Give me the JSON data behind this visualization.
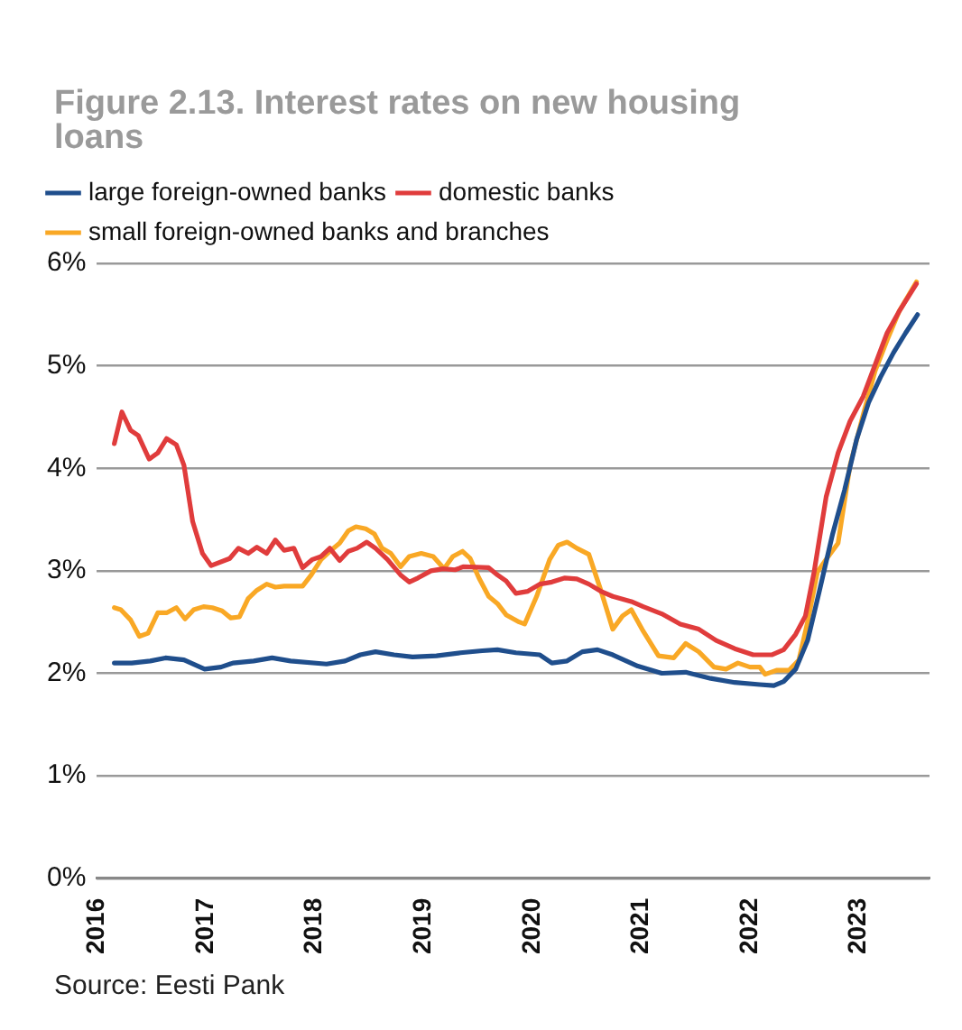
{
  "chart_data": {
    "type": "line",
    "title": "Figure 2.13. Interest rates on new housing loans",
    "xlim": [
      2016,
      2023.65
    ],
    "xticks": [
      2016,
      2017,
      2018,
      2019,
      2020,
      2021,
      2022,
      2023
    ],
    "ylim": [
      0,
      6
    ],
    "yticks": [
      {
        "value": 0,
        "label": "0%"
      },
      {
        "value": 1,
        "label": "1%"
      },
      {
        "value": 2,
        "label": "2%"
      },
      {
        "value": 3,
        "label": "3%"
      },
      {
        "value": 4,
        "label": "4%"
      },
      {
        "value": 5,
        "label": "5%"
      },
      {
        "value": 6,
        "label": "6%"
      }
    ],
    "grid": "y",
    "legend": "top left",
    "marker": "none",
    "line_style": "solid",
    "annotations": [
      "Source: Eesti Pank"
    ],
    "series": [
      {
        "name": "large foreign-owned banks",
        "color": "#1f4e8c",
        "x": [
          2016.16,
          2016.32,
          2016.49,
          2016.63,
          2016.8,
          2016.99,
          2017.14,
          2017.25,
          2017.44,
          2017.61,
          2017.78,
          2018.11,
          2018.28,
          2018.42,
          2018.56,
          2018.73,
          2018.9,
          2019.12,
          2019.34,
          2019.54,
          2019.68,
          2019.85,
          2020.07,
          2020.18,
          2020.32,
          2020.46,
          2020.6,
          2020.74,
          2020.97,
          2021.19,
          2021.41,
          2021.64,
          2021.86,
          2022.09,
          2022.22,
          2022.31,
          2022.42,
          2022.53,
          2022.64,
          2022.76,
          2022.87,
          2022.98,
          2023.09,
          2023.2,
          2023.32,
          2023.43,
          2023.54
        ],
        "values": [
          2.1,
          2.1,
          2.12,
          2.15,
          2.13,
          2.04,
          2.06,
          2.1,
          2.12,
          2.15,
          2.12,
          2.09,
          2.12,
          2.18,
          2.21,
          2.18,
          2.16,
          2.17,
          2.2,
          2.22,
          2.23,
          2.2,
          2.18,
          2.1,
          2.12,
          2.21,
          2.23,
          2.18,
          2.07,
          2.0,
          2.01,
          1.95,
          1.91,
          1.89,
          1.88,
          1.92,
          2.04,
          2.32,
          2.81,
          3.36,
          3.79,
          4.28,
          4.64,
          4.89,
          5.13,
          5.32,
          5.5
        ]
      },
      {
        "name": "domestic banks",
        "color": "#e03c3c",
        "x": [
          2016.16,
          2016.23,
          2016.31,
          2016.38,
          2016.48,
          2016.56,
          2016.64,
          2016.73,
          2016.8,
          2016.88,
          2016.97,
          2017.05,
          2017.22,
          2017.3,
          2017.39,
          2017.47,
          2017.56,
          2017.64,
          2017.72,
          2017.81,
          2017.89,
          2017.98,
          2018.06,
          2018.14,
          2018.23,
          2018.31,
          2018.39,
          2018.48,
          2018.56,
          2018.67,
          2018.79,
          2018.87,
          2018.95,
          2019.07,
          2019.18,
          2019.29,
          2019.37,
          2019.6,
          2019.68,
          2019.76,
          2019.85,
          2019.96,
          2020.07,
          2020.18,
          2020.3,
          2020.41,
          2020.52,
          2020.63,
          2020.74,
          2020.91,
          2021.02,
          2021.19,
          2021.36,
          2021.53,
          2021.69,
          2021.86,
          2022.03,
          2022.2,
          2022.31,
          2022.42,
          2022.51,
          2022.59,
          2022.7,
          2022.81,
          2022.92,
          2023.04,
          2023.15,
          2023.26,
          2023.37,
          2023.53
        ],
        "values": [
          4.24,
          4.55,
          4.37,
          4.32,
          4.09,
          4.15,
          4.29,
          4.23,
          4.03,
          3.48,
          3.17,
          3.05,
          3.12,
          3.22,
          3.17,
          3.23,
          3.17,
          3.3,
          3.2,
          3.22,
          3.03,
          3.11,
          3.14,
          3.22,
          3.1,
          3.19,
          3.22,
          3.28,
          3.22,
          3.11,
          2.96,
          2.89,
          2.93,
          3.0,
          3.02,
          3.01,
          3.04,
          3.03,
          2.96,
          2.9,
          2.78,
          2.8,
          2.87,
          2.89,
          2.93,
          2.92,
          2.87,
          2.8,
          2.75,
          2.7,
          2.65,
          2.58,
          2.48,
          2.43,
          2.32,
          2.24,
          2.18,
          2.18,
          2.23,
          2.38,
          2.56,
          2.99,
          3.72,
          4.15,
          4.46,
          4.7,
          5.01,
          5.32,
          5.53,
          5.8
        ]
      },
      {
        "name": "small foreign-owned banks and branches",
        "color": "#f9a825",
        "x": [
          2016.16,
          2016.22,
          2016.31,
          2016.39,
          2016.47,
          2016.56,
          2016.64,
          2016.73,
          2016.81,
          2016.89,
          2016.98,
          2017.06,
          2017.15,
          2017.23,
          2017.31,
          2017.39,
          2017.47,
          2017.56,
          2017.64,
          2017.72,
          2017.89,
          2017.97,
          2018.06,
          2018.14,
          2018.23,
          2018.31,
          2018.38,
          2018.47,
          2018.55,
          2018.62,
          2018.7,
          2018.79,
          2018.87,
          2018.98,
          2019.09,
          2019.19,
          2019.27,
          2019.36,
          2019.43,
          2019.51,
          2019.6,
          2019.68,
          2019.76,
          2019.88,
          2019.93,
          2020.04,
          2020.16,
          2020.24,
          2020.32,
          2020.41,
          2020.52,
          2020.63,
          2020.74,
          2020.83,
          2020.91,
          2021.02,
          2021.16,
          2021.3,
          2021.41,
          2021.53,
          2021.67,
          2021.78,
          2021.89,
          2022.0,
          2022.09,
          2022.14,
          2022.25,
          2022.36,
          2022.45,
          2022.53,
          2022.62,
          2022.7,
          2022.81,
          2022.92,
          2023.04,
          2023.15,
          2023.26,
          2023.37,
          2023.53
        ],
        "values": [
          2.64,
          2.62,
          2.52,
          2.36,
          2.39,
          2.59,
          2.59,
          2.64,
          2.53,
          2.62,
          2.65,
          2.64,
          2.61,
          2.54,
          2.55,
          2.73,
          2.81,
          2.87,
          2.84,
          2.85,
          2.85,
          2.96,
          3.11,
          3.19,
          3.27,
          3.39,
          3.43,
          3.41,
          3.36,
          3.22,
          3.17,
          3.04,
          3.14,
          3.17,
          3.14,
          3.02,
          3.14,
          3.19,
          3.12,
          2.93,
          2.75,
          2.68,
          2.57,
          2.5,
          2.48,
          2.75,
          3.11,
          3.25,
          3.28,
          3.22,
          3.16,
          2.81,
          2.43,
          2.56,
          2.62,
          2.41,
          2.17,
          2.15,
          2.29,
          2.21,
          2.06,
          2.04,
          2.1,
          2.06,
          2.06,
          1.99,
          2.03,
          2.03,
          2.13,
          2.5,
          2.99,
          3.11,
          3.27,
          4.03,
          4.52,
          4.95,
          5.25,
          5.53,
          5.82
        ]
      }
    ]
  }
}
